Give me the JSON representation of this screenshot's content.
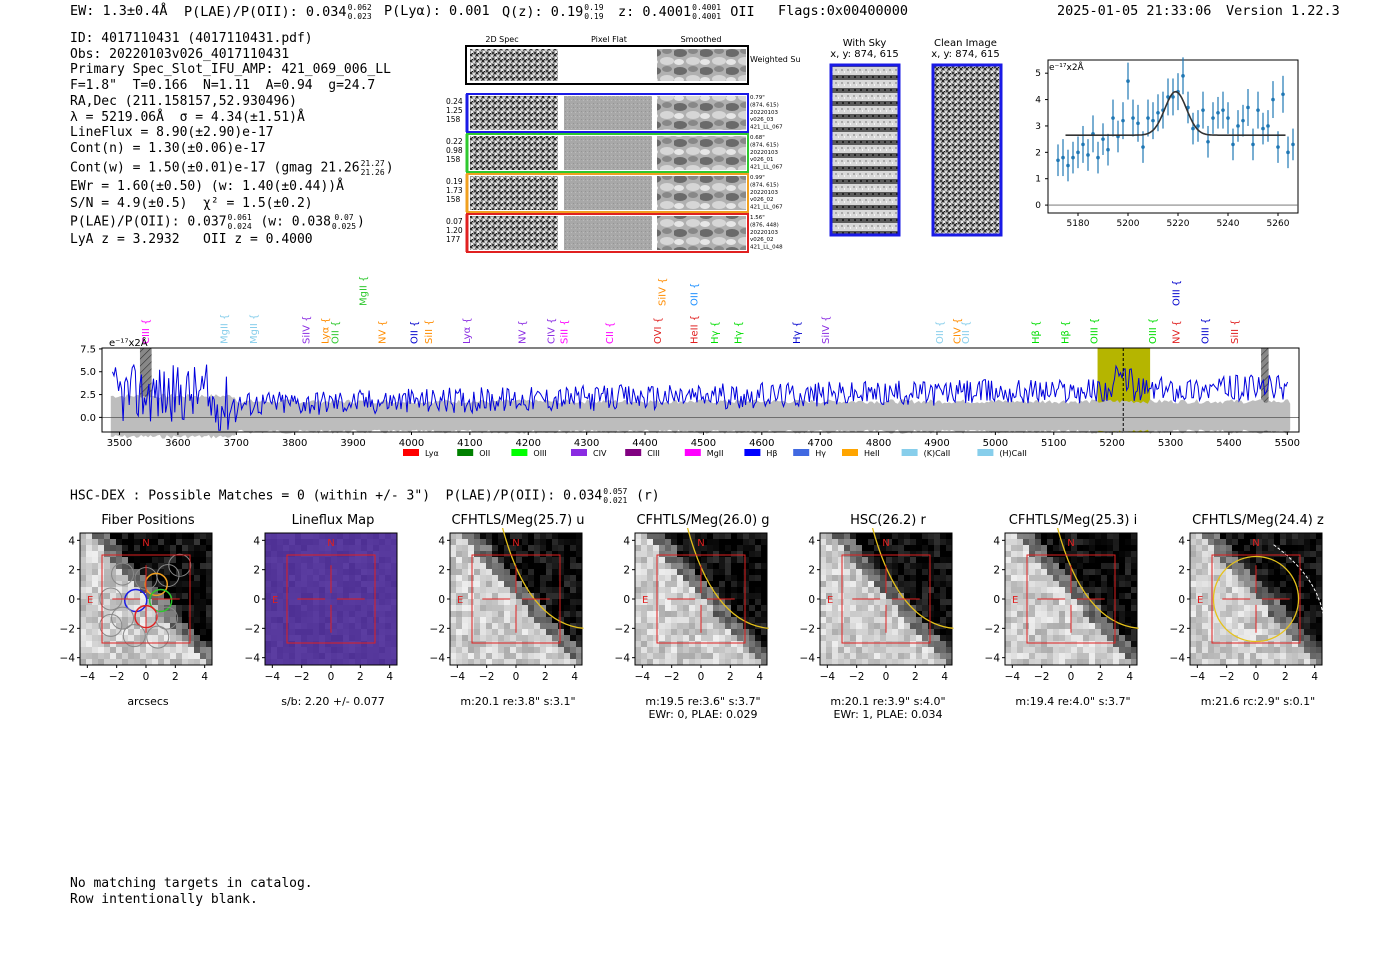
{
  "header": {
    "ew": "EW: 1.3±0.4Å",
    "plae_label": "P(LAE)/P(OII): 0.034",
    "plae_hi": "0.062",
    "plae_lo": "0.023",
    "plya": "P(Lyα): 0.001",
    "qz_label": "Q(z): 0.19",
    "qz_hi": "0.19",
    "qz_lo": "0.19",
    "z_label": "z: 0.4001",
    "z_hi": "0.4001",
    "z_lo": "0.4001",
    "z_line": "OII",
    "flags": "Flags:0x00400000",
    "datetime": "2025-01-05 21:33:06",
    "version": "Version 1.22.3"
  },
  "info": {
    "id": "ID: 4017110431 (4017110431.pdf)",
    "obs": "Obs: 20220103v026_4017110431",
    "primary": "Primary Spec_Slot_IFU_AMP: 421_069_006_LL",
    "fitline": "F=1.8\"  T=0.166  N=1.11  A=0.94  g=24.7",
    "radec": "RA,Dec (211.158157,52.930496)",
    "lambda": "λ = 5219.06Å  σ = 4.34(±1.51)Å",
    "lineflux": "LineFlux = 8.90(±2.90)e-17",
    "contn": "Cont(n) = 1.30(±0.06)e-17",
    "contw": "Cont(w) = 1.50(±0.01)e-17 (gmag 21.26",
    "contw_hi": "21.27",
    "contw_lo": "21.26",
    "ewr": "EWr = 1.60(±0.50) (w: 1.40(±0.44))Å",
    "sn": "S/N = 4.9(±0.5)  χ² = 1.5(±0.2)",
    "plae": "P(LAE)/P(OII): 0.037",
    "plae_hi": "0.061",
    "plae_lo": "0.024",
    "plae_w": "(w: 0.038",
    "plae_w_hi": "0.07",
    "plae_w_lo": "0.025",
    "lya": "LyA z = 3.2932   OII z = 0.4000"
  },
  "cutouts_2d": {
    "col_labels": [
      "2D Spec",
      "Pixel Flat",
      "Smoothed"
    ],
    "weighted_sum": "Weighted Sum",
    "rows": [
      {
        "color": "#1a1ae6",
        "left": [
          "0.24",
          "1.25",
          "158"
        ],
        "right": [
          "0.79\"",
          "(874, 615)",
          "20220103",
          "v026_03",
          "421_LL_067"
        ]
      },
      {
        "color": "#2ec82e",
        "left": [
          "0.22",
          "0.98",
          "158"
        ],
        "right": [
          "0.68\"",
          "(874, 615)",
          "20220103",
          "v026_01",
          "421_LL_067"
        ]
      },
      {
        "color": "#f0a020",
        "left": [
          "0.19",
          "1.73",
          "158"
        ],
        "right": [
          "0.99\"",
          "(874, 615)",
          "20220103",
          "v026_02",
          "421_LL_067"
        ]
      },
      {
        "color": "#e02020",
        "left": [
          "0.07",
          "1.20",
          "177"
        ],
        "right": [
          "1.56\"",
          "(876, 448)",
          "20220103",
          "v026_02",
          "421_LL_048"
        ]
      }
    ]
  },
  "sky": {
    "with_sky": "With Sky",
    "with_sky_xy": "x, y: 874, 615",
    "clean": "Clean Image",
    "clean_xy": "x, y: 874, 615"
  },
  "zoom_chart": {
    "type": "scatter",
    "units": "e⁻¹⁷x2Å",
    "xlim": [
      5168,
      5268
    ],
    "ylim": [
      -0.3,
      5.5
    ],
    "xticks": [
      5180,
      5200,
      5220,
      5240,
      5260
    ],
    "yticks": [
      0,
      1,
      2,
      3,
      4,
      5
    ],
    "x": [
      5172,
      5174,
      5176,
      5178,
      5180,
      5182,
      5184,
      5186,
      5188,
      5190,
      5192,
      5194,
      5196,
      5198,
      5200,
      5202,
      5204,
      5206,
      5208,
      5210,
      5212,
      5214,
      5216,
      5218,
      5220,
      5222,
      5224,
      5226,
      5228,
      5230,
      5232,
      5234,
      5236,
      5238,
      5240,
      5242,
      5244,
      5246,
      5248,
      5250,
      5252,
      5254,
      5256,
      5258,
      5260,
      5262,
      5264,
      5266
    ],
    "y": [
      1.7,
      1.8,
      1.5,
      1.8,
      2.0,
      2.3,
      1.9,
      2.7,
      1.8,
      2.5,
      2.1,
      3.3,
      2.6,
      3.2,
      4.7,
      3.3,
      3.1,
      2.2,
      3.3,
      3.2,
      3.5,
      3.6,
      4.1,
      4.1,
      4.3,
      4.9,
      3.7,
      2.9,
      3.0,
      3.6,
      2.4,
      3.3,
      3.5,
      3.6,
      3.3,
      2.3,
      3.0,
      3.2,
      3.7,
      2.3,
      3.6,
      2.9,
      3.0,
      4.0,
      2.2,
      4.2,
      2.0,
      2.3
    ],
    "err": [
      0.6,
      0.7,
      0.6,
      0.6,
      0.6,
      0.7,
      0.6,
      0.7,
      0.6,
      0.6,
      0.6,
      0.7,
      0.6,
      0.7,
      0.7,
      0.7,
      0.7,
      0.6,
      0.7,
      0.7,
      0.7,
      0.7,
      0.7,
      0.7,
      0.7,
      0.7,
      0.6,
      0.6,
      0.6,
      0.7,
      0.6,
      0.6,
      0.6,
      0.7,
      0.6,
      0.6,
      0.6,
      0.6,
      0.7,
      0.6,
      0.7,
      0.6,
      0.6,
      0.7,
      0.6,
      0.7,
      0.6,
      0.6
    ],
    "fit": {
      "continuum": 2.65,
      "amplitude": 1.65,
      "center": 5219.06,
      "sigma": 4.34
    }
  },
  "spectrum": {
    "units": "e⁻¹⁷x2Å",
    "xlim": [
      3470,
      5520
    ],
    "ylim": [
      -1.6,
      7.6
    ],
    "xticks": [
      3500,
      3600,
      3700,
      3800,
      3900,
      4000,
      4100,
      4200,
      4300,
      4400,
      4500,
      4600,
      4700,
      4800,
      4900,
      5000,
      5100,
      5200,
      5300,
      5400,
      5500
    ],
    "yticks": [
      "7.5",
      "5.0",
      "2.5",
      "0.0"
    ],
    "yvals": [
      7.5,
      5.0,
      2.5,
      0.0
    ],
    "highlight": {
      "from": 5175,
      "to": 5265,
      "color": "#b5b500"
    },
    "center_line": 5219,
    "hatch_bands": [
      [
        3535,
        3555
      ],
      [
        5455,
        5468
      ]
    ],
    "lines": [
      {
        "name": "CIII",
        "x": 3545,
        "color": "#ff00ff",
        "row": 2
      },
      {
        "name": "MgII",
        "x": 3680,
        "color": "#87ceeb",
        "row": 2
      },
      {
        "name": "MgII",
        "x": 3730,
        "color": "#87ceeb",
        "row": 2
      },
      {
        "name": "SiIV",
        "x": 3820,
        "color": "#8a2be2",
        "row": 2
      },
      {
        "name": "Lyα",
        "x": 3853,
        "color": "#ff8c00",
        "row": 2
      },
      {
        "name": "OII",
        "x": 3870,
        "color": "#2ec82e",
        "row": 2
      },
      {
        "name": "MgII",
        "x": 3918,
        "color": "#2ec82e",
        "row": 1
      },
      {
        "name": "NV",
        "x": 3950,
        "color": "#ff8c00",
        "row": 2
      },
      {
        "name": "OII",
        "x": 4005,
        "color": "#0000cd",
        "row": 2
      },
      {
        "name": "SiII",
        "x": 4030,
        "color": "#ff8c00",
        "row": 2
      },
      {
        "name": "Lyα",
        "x": 4095,
        "color": "#8a2be2",
        "row": 2
      },
      {
        "name": "NV",
        "x": 4190,
        "color": "#8a2be2",
        "row": 2
      },
      {
        "name": "CIV",
        "x": 4240,
        "color": "#8a2be2",
        "row": 2
      },
      {
        "name": "SiII",
        "x": 4262,
        "color": "#ff00ff",
        "row": 2
      },
      {
        "name": "CII",
        "x": 4340,
        "color": "#ff00ff",
        "row": 2
      },
      {
        "name": "SiIV",
        "x": 4430,
        "color": "#ff8c00",
        "row": 1
      },
      {
        "name": "OVI",
        "x": 4422,
        "color": "#e02020",
        "row": 2
      },
      {
        "name": "OII",
        "x": 4485,
        "color": "#1e90ff",
        "row": 1
      },
      {
        "name": "HeII",
        "x": 4485,
        "color": "#e02020",
        "row": 2
      },
      {
        "name": "Hγ",
        "x": 4520,
        "color": "#00dd00",
        "row": 2
      },
      {
        "name": "Hγ",
        "x": 4560,
        "color": "#00dd00",
        "row": 2
      },
      {
        "name": "Hγ",
        "x": 4660,
        "color": "#0000cd",
        "row": 2
      },
      {
        "name": "SiIV",
        "x": 4710,
        "color": "#8a2be2",
        "row": 2
      },
      {
        "name": "OII",
        "x": 4905,
        "color": "#87ceeb",
        "row": 2
      },
      {
        "name": "CIV",
        "x": 4935,
        "color": "#ff8c00",
        "row": 2
      },
      {
        "name": "OII",
        "x": 4950,
        "color": "#87ceeb",
        "row": 2
      },
      {
        "name": "Hβ",
        "x": 5070,
        "color": "#00dd00",
        "row": 2
      },
      {
        "name": "Hβ",
        "x": 5120,
        "color": "#00dd00",
        "row": 2
      },
      {
        "name": "OIII",
        "x": 5170,
        "color": "#00dd00",
        "row": 2
      },
      {
        "name": "OIII",
        "x": 5270,
        "color": "#00dd00",
        "row": 2
      },
      {
        "name": "NV",
        "x": 5310,
        "color": "#e02020",
        "row": 2
      },
      {
        "name": "OIII",
        "x": 5310,
        "color": "#0000cd",
        "row": 1
      },
      {
        "name": "OIII",
        "x": 5360,
        "color": "#0000cd",
        "row": 2
      },
      {
        "name": "SiII",
        "x": 5410,
        "color": "#e02020",
        "row": 2
      }
    ],
    "legend": [
      {
        "name": "Lyα",
        "color": "#ff0000"
      },
      {
        "name": "OII",
        "color": "#008000"
      },
      {
        "name": "OIII",
        "color": "#00ff00"
      },
      {
        "name": "CIV",
        "color": "#8a2be2"
      },
      {
        "name": "CIII",
        "color": "#800080"
      },
      {
        "name": "MgII",
        "color": "#ff00ff"
      },
      {
        "name": "Hβ",
        "color": "#0000ff"
      },
      {
        "name": "Hγ",
        "color": "#4169e1"
      },
      {
        "name": "HeII",
        "color": "#ffa500"
      },
      {
        "name": "(K)CaII",
        "color": "#87ceeb"
      },
      {
        "name": "(H)CaII",
        "color": "#87ceeb"
      }
    ]
  },
  "hsc": {
    "title": "HSC-DEX : Possible Matches = 0 (within +/- 3\")  P(LAE)/P(OII): 0.034",
    "hi": "0.057",
    "lo": "0.021",
    "band": "(r)"
  },
  "cutouts": [
    {
      "title": "Fiber Positions",
      "label1": "arcsecs",
      "label2": "",
      "type": "fibers"
    },
    {
      "title": "Lineflux Map",
      "label1": "s/b: 2.20 +/- 0.077",
      "label2": "",
      "type": "lineflux"
    },
    {
      "title": "CFHTLS/Meg(25.7) u",
      "label1": "m:20.1  re:3.8\"  s:3.1\"",
      "label2": "",
      "type": "img",
      "ell": "u"
    },
    {
      "title": "CFHTLS/Meg(26.0) g",
      "label1": "m:19.5  re:3.6\"  s:3.7\"",
      "label2": "EWr: 0, PLAE: 0.029",
      "type": "img",
      "ell": "g"
    },
    {
      "title": "HSC(26.2) r",
      "label1": "m:20.1  re:3.9\"  s:4.0\"",
      "label2": "EWr: 1, PLAE: 0.034",
      "type": "img",
      "ell": "r"
    },
    {
      "title": "CFHTLS/Meg(25.3) i",
      "label1": "m:19.4  re:4.0\"  s:3.7\"",
      "label2": "",
      "type": "img",
      "ell": "i"
    },
    {
      "title": "CFHTLS/Meg(24.4) z",
      "label1": "m:21.6 rc:2.9\"  s:0.1\"",
      "label2": "",
      "type": "img",
      "ell": "z"
    }
  ],
  "cutout_axis": {
    "ticks": [
      "4",
      "2",
      "0",
      "−2",
      "−4"
    ],
    "xticks": [
      "−4",
      "−2",
      "0",
      "2",
      "4"
    ],
    "n_label": "N",
    "e_label": "E"
  },
  "footer": {
    "line1": "No matching targets in catalog.",
    "line2": "Row intentionally blank."
  }
}
